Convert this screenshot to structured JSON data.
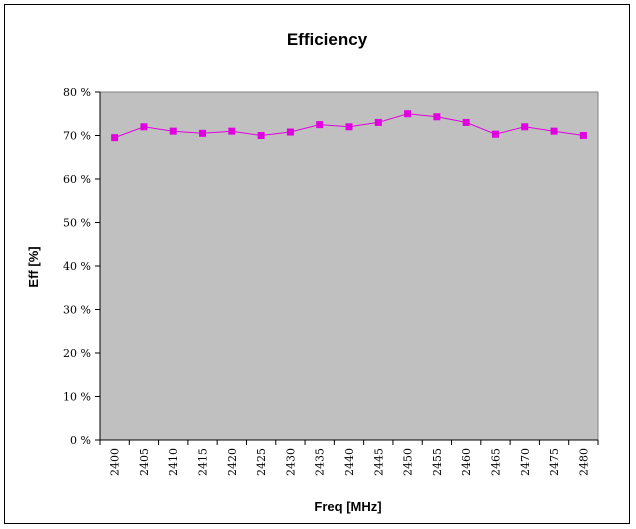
{
  "chart_data": {
    "type": "line",
    "title": "Efficiency",
    "xlabel": "Freq [MHz]",
    "ylabel": "Eff [%]",
    "categories": [
      "2400",
      "2405",
      "2410",
      "2415",
      "2420",
      "2425",
      "2430",
      "2435",
      "2440",
      "2445",
      "2450",
      "2455",
      "2460",
      "2465",
      "2470",
      "2475",
      "2480"
    ],
    "series": [
      {
        "values": [
          69.5,
          72,
          71,
          70.5,
          71,
          70,
          70.8,
          72.5,
          72,
          73,
          75,
          74.3,
          73,
          70.3,
          72,
          71,
          70
        ]
      }
    ],
    "ylim": [
      0,
      80
    ],
    "yticks": [
      "0 %",
      "10 %",
      "20 %",
      "30 %",
      "40 %",
      "50 %",
      "60 %",
      "70 %",
      "80 %"
    ],
    "grid": false,
    "legend": "none",
    "colors": {
      "plot_background": "#c0c0c0",
      "series": "#e000e0",
      "axis": "#000000"
    }
  }
}
